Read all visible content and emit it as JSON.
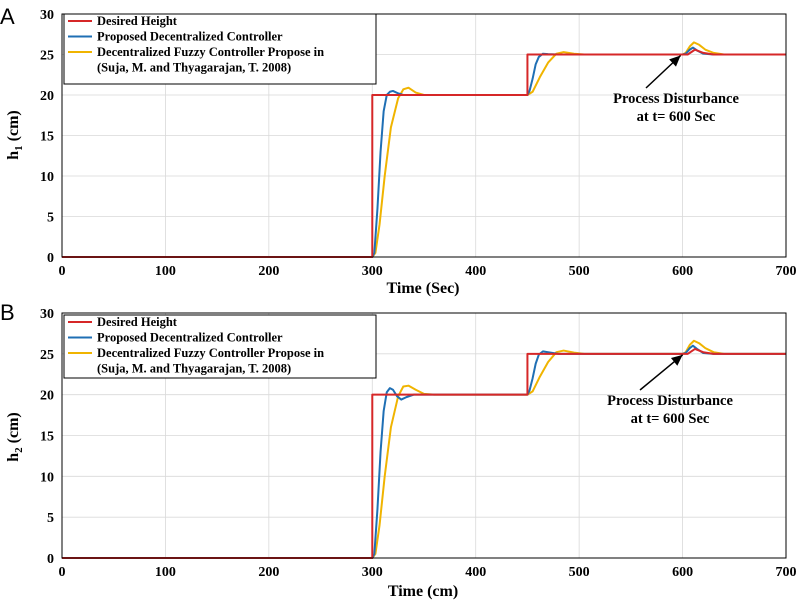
{
  "chart_data": [
    {
      "type": "line",
      "panel_label": "A",
      "xlabel": "Time (Sec)",
      "ylabel": "h",
      "ylabel_subscript": "1",
      "ylabel_unit": " (cm)",
      "xlim": [
        0,
        700
      ],
      "ylim": [
        0,
        30
      ],
      "xticks": [
        "0",
        "100",
        "200",
        "300",
        "400",
        "500",
        "600",
        "700"
      ],
      "yticks": [
        "0",
        "5",
        "10",
        "15",
        "20",
        "25",
        "30"
      ],
      "grid": true,
      "legend_position": "top-left",
      "annotation": {
        "lines": [
          "Process Disturbance",
          "at t= 600 Sec"
        ],
        "target": [
          600,
          25
        ]
      },
      "series": [
        {
          "name": "Desired Height",
          "color": "#d62728",
          "points": [
            [
              0,
              0
            ],
            [
              300,
              0
            ],
            [
              300,
              20
            ],
            [
              450,
              20
            ],
            [
              450,
              25
            ],
            [
              600,
              25
            ],
            [
              605,
              25
            ],
            [
              612,
              25.6
            ],
            [
              620,
              25.2
            ],
            [
              630,
              25
            ],
            [
              700,
              25
            ]
          ]
        },
        {
          "name": "Proposed Decentralized Controller",
          "color": "#1f6fb4",
          "points": [
            [
              0,
              0
            ],
            [
              300,
              0
            ],
            [
              302,
              0.5
            ],
            [
              305,
              6
            ],
            [
              308,
              13
            ],
            [
              311,
              18
            ],
            [
              314,
              20
            ],
            [
              317,
              20.4
            ],
            [
              320,
              20.5
            ],
            [
              325,
              20.2
            ],
            [
              330,
              20
            ],
            [
              340,
              20
            ],
            [
              450,
              20
            ],
            [
              452,
              20.5
            ],
            [
              455,
              22
            ],
            [
              458,
              23.8
            ],
            [
              461,
              24.7
            ],
            [
              465,
              25.1
            ],
            [
              470,
              25.05
            ],
            [
              480,
              25
            ],
            [
              600,
              25
            ],
            [
              603,
              25.1
            ],
            [
              607,
              25.6
            ],
            [
              610,
              25.85
            ],
            [
              614,
              25.5
            ],
            [
              620,
              25.1
            ],
            [
              630,
              25
            ],
            [
              700,
              25
            ]
          ]
        },
        {
          "name": "Decentralized Fuzzy Controller Propose in",
          "name_line2": "(Suja, M. and Thyagarajan, T. 2008)",
          "color": "#f0b400",
          "points": [
            [
              0,
              0
            ],
            [
              300,
              0
            ],
            [
              303,
              0.5
            ],
            [
              307,
              4
            ],
            [
              312,
              10
            ],
            [
              318,
              16
            ],
            [
              325,
              19.6
            ],
            [
              330,
              20.7
            ],
            [
              335,
              20.9
            ],
            [
              342,
              20.3
            ],
            [
              350,
              20
            ],
            [
              360,
              20
            ],
            [
              450,
              20
            ],
            [
              455,
              20.4
            ],
            [
              462,
              22.2
            ],
            [
              470,
              24
            ],
            [
              478,
              25.1
            ],
            [
              485,
              25.3
            ],
            [
              495,
              25.1
            ],
            [
              505,
              25
            ],
            [
              600,
              25
            ],
            [
              603,
              25.2
            ],
            [
              607,
              26
            ],
            [
              611,
              26.5
            ],
            [
              616,
              26.2
            ],
            [
              622,
              25.6
            ],
            [
              630,
              25.2
            ],
            [
              640,
              25
            ],
            [
              700,
              25
            ]
          ]
        }
      ]
    },
    {
      "type": "line",
      "panel_label": "B",
      "xlabel": "Time (cm)",
      "ylabel": "h",
      "ylabel_subscript": "2",
      "ylabel_unit": " (cm)",
      "xlim": [
        0,
        700
      ],
      "ylim": [
        0,
        30
      ],
      "xticks": [
        "0",
        "100",
        "200",
        "300",
        "400",
        "500",
        "600",
        "700"
      ],
      "yticks": [
        "0",
        "5",
        "10",
        "15",
        "20",
        "25",
        "30"
      ],
      "grid": true,
      "legend_position": "top-left",
      "annotation": {
        "lines": [
          "Process Disturbance",
          "at t= 600 Sec"
        ],
        "target": [
          602,
          25
        ]
      },
      "series": [
        {
          "name": "Desired Height",
          "color": "#d62728",
          "points": [
            [
              0,
              0
            ],
            [
              300,
              0
            ],
            [
              300,
              20
            ],
            [
              450,
              20
            ],
            [
              450,
              25
            ],
            [
              600,
              25
            ],
            [
              605,
              25
            ],
            [
              612,
              25.6
            ],
            [
              620,
              25.2
            ],
            [
              630,
              25
            ],
            [
              700,
              25
            ]
          ]
        },
        {
          "name": "Proposed Decentralized Controller",
          "color": "#1f6fb4",
          "points": [
            [
              0,
              0
            ],
            [
              300,
              0
            ],
            [
              302,
              0.5
            ],
            [
              305,
              6
            ],
            [
              308,
              13
            ],
            [
              311,
              18
            ],
            [
              314,
              20.3
            ],
            [
              317,
              20.8
            ],
            [
              320,
              20.6
            ],
            [
              324,
              19.8
            ],
            [
              328,
              19.4
            ],
            [
              333,
              19.7
            ],
            [
              340,
              20
            ],
            [
              450,
              20
            ],
            [
              452,
              20.5
            ],
            [
              455,
              22
            ],
            [
              458,
              23.8
            ],
            [
              461,
              24.9
            ],
            [
              465,
              25.3
            ],
            [
              470,
              25.2
            ],
            [
              480,
              25
            ],
            [
              600,
              25
            ],
            [
              603,
              25.1
            ],
            [
              607,
              25.7
            ],
            [
              610,
              26
            ],
            [
              614,
              25.6
            ],
            [
              620,
              25.1
            ],
            [
              630,
              25
            ],
            [
              700,
              25
            ]
          ]
        },
        {
          "name": "Decentralized Fuzzy Controller Propose in",
          "name_line2": "(Suja, M. and Thyagarajan, T. 2008)",
          "color": "#f0b400",
          "points": [
            [
              0,
              0
            ],
            [
              300,
              0
            ],
            [
              303,
              0.5
            ],
            [
              307,
              4
            ],
            [
              312,
              10
            ],
            [
              318,
              16
            ],
            [
              325,
              19.8
            ],
            [
              330,
              21
            ],
            [
              335,
              21.1
            ],
            [
              342,
              20.6
            ],
            [
              350,
              20.1
            ],
            [
              360,
              20
            ],
            [
              450,
              20
            ],
            [
              455,
              20.4
            ],
            [
              462,
              22.2
            ],
            [
              470,
              24
            ],
            [
              478,
              25.2
            ],
            [
              485,
              25.4
            ],
            [
              495,
              25.15
            ],
            [
              505,
              25
            ],
            [
              600,
              25
            ],
            [
              603,
              25.2
            ],
            [
              607,
              26.1
            ],
            [
              611,
              26.6
            ],
            [
              616,
              26.3
            ],
            [
              622,
              25.7
            ],
            [
              630,
              25.2
            ],
            [
              640,
              25
            ],
            [
              700,
              25
            ]
          ]
        }
      ]
    }
  ]
}
